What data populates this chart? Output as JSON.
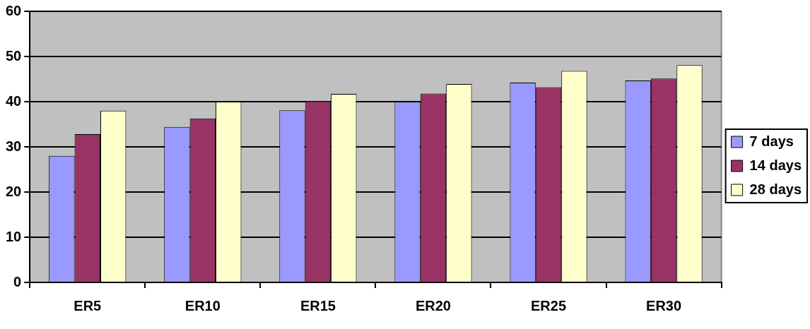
{
  "chart_data": {
    "type": "bar",
    "categories": [
      "ER5",
      "ER10",
      "ER15",
      "ER20",
      "ER25",
      "ER30"
    ],
    "series": [
      {
        "name": "7 days",
        "color": "#9999ff",
        "values": [
          28,
          34.4,
          38.1,
          40,
          44.2,
          44.7
        ]
      },
      {
        "name": "14 days",
        "color": "#993366",
        "values": [
          32.8,
          36.3,
          40.1,
          41.8,
          43.2,
          45.1
        ]
      },
      {
        "name": "28 days",
        "color": "#ffffcc",
        "values": [
          38,
          40,
          41.7,
          43.9,
          46.8,
          48.1
        ]
      }
    ],
    "ylim": [
      0,
      60
    ],
    "yticks": [
      0,
      10,
      20,
      30,
      40,
      50,
      60
    ],
    "grid": "y",
    "legend": "right"
  }
}
